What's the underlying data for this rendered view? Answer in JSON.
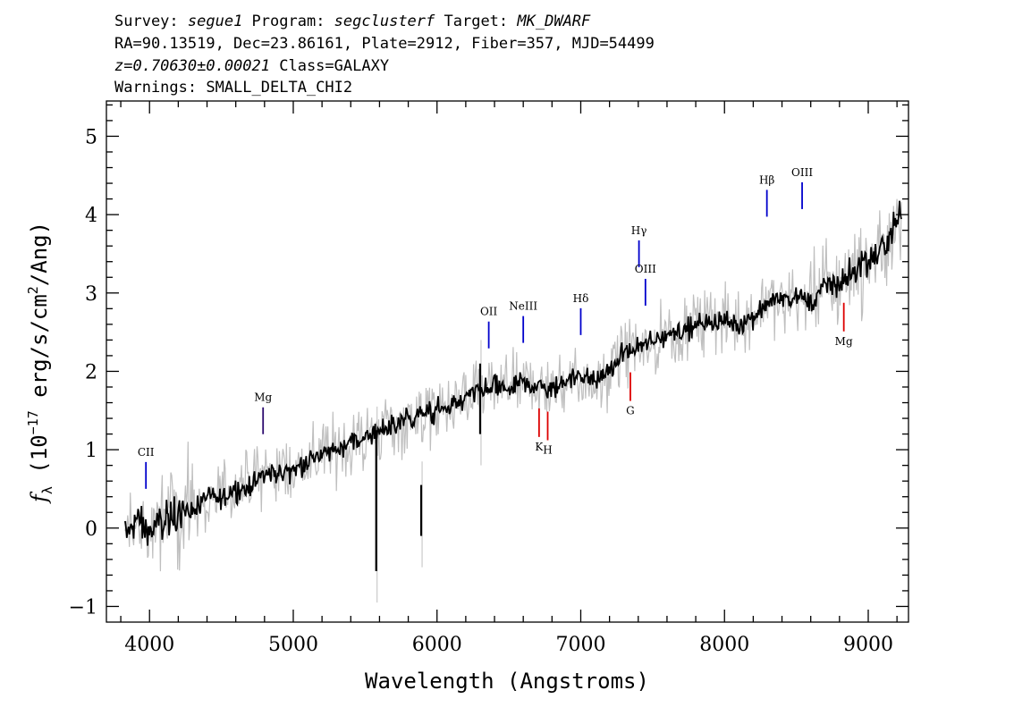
{
  "header": {
    "line1": {
      "survey_label": "Survey: ",
      "survey": "segue1",
      "program_label": " Program: ",
      "program": "segclusterf",
      "target_label": " Target: ",
      "target": "MK_DWARF"
    },
    "line2": "RA=90.13519, Dec=23.86161, Plate=2912, Fiber=357, MJD=54499",
    "line3": {
      "redshift": "z=0.70630±0.00021",
      "class": " Class=GALAXY"
    },
    "line4": "Warnings: SMALL_DELTA_CHI2"
  },
  "chart_data": {
    "type": "line",
    "xlabel": "Wavelength (Angstroms)",
    "ylabel_parts": {
      "f": "f",
      "sub": "λ",
      "pre": " (10",
      "exp1": "−17",
      "mid": " erg/s/cm",
      "exp2": "2",
      "post": "/Ang)"
    },
    "xlim": [
      3700,
      9280
    ],
    "ylim": [
      -1.2,
      5.45
    ],
    "xticks": [
      4000,
      5000,
      6000,
      7000,
      8000,
      9000
    ],
    "xtick_labels": [
      "4000",
      "5000",
      "6000",
      "7000",
      "8000",
      "9000"
    ],
    "yticks": [
      -1,
      0,
      1,
      2,
      3,
      4,
      5
    ],
    "ytick_labels": [
      "−1",
      "0",
      "1",
      "2",
      "3",
      "4",
      "5"
    ],
    "series": [
      {
        "role": "flux",
        "color": "#000000",
        "x": [
          3830,
          3900,
          4000,
          4100,
          4200,
          4300,
          4400,
          4500,
          4600,
          4700,
          4800,
          4900,
          5000,
          5100,
          5200,
          5300,
          5400,
          5500,
          5600,
          5700,
          5800,
          5900,
          6000,
          6100,
          6200,
          6300,
          6400,
          6500,
          6600,
          6700,
          6800,
          6900,
          7000,
          7100,
          7200,
          7300,
          7400,
          7500,
          7600,
          7700,
          7800,
          7900,
          8000,
          8100,
          8200,
          8300,
          8400,
          8500,
          8600,
          8700,
          8800,
          8900,
          9000,
          9100,
          9200,
          9230
        ],
        "y": [
          -0.1,
          0.1,
          -0.05,
          0.1,
          0.2,
          0.25,
          0.35,
          0.4,
          0.5,
          0.55,
          0.7,
          0.7,
          0.75,
          0.85,
          0.95,
          1.0,
          1.1,
          1.15,
          1.25,
          1.3,
          1.4,
          1.45,
          1.5,
          1.55,
          1.65,
          1.75,
          1.8,
          1.78,
          1.85,
          1.82,
          1.75,
          1.9,
          1.95,
          1.85,
          2.0,
          2.25,
          2.3,
          2.35,
          2.5,
          2.5,
          2.6,
          2.65,
          2.65,
          2.6,
          2.7,
          2.9,
          2.9,
          2.95,
          2.9,
          3.1,
          3.1,
          3.3,
          3.4,
          3.55,
          3.9,
          4.0
        ]
      },
      {
        "role": "noise",
        "color": "#bfbfbf",
        "sigma": 0.22
      }
    ],
    "spikes": [
      {
        "x": 5577,
        "y1": -0.55,
        "y2": 1.25
      },
      {
        "x": 5890,
        "y1": -0.1,
        "y2": 0.55
      },
      {
        "x": 6300,
        "y1": 1.2,
        "y2": 2.1
      }
    ],
    "emission_lines": [
      {
        "label": "CII",
        "x": 3975,
        "color": "#0000cc"
      },
      {
        "label": "Mg",
        "x": 4790,
        "color": "#2b0a6e"
      },
      {
        "label": "OII",
        "x": 6360,
        "color": "#0000cc"
      },
      {
        "label": "NeIII",
        "x": 6600,
        "color": "#0000cc"
      },
      {
        "label": "Hδ",
        "x": 7000,
        "color": "#0000cc"
      },
      {
        "label": "Hγ",
        "x": 7405,
        "color": "#0000cc"
      },
      {
        "label": "OIII",
        "x": 7450,
        "color": "#0000cc"
      },
      {
        "label": "Hβ",
        "x": 8295,
        "color": "#0000cc"
      },
      {
        "label": "OIII",
        "x": 8540,
        "color": "#0000cc"
      }
    ],
    "absorption_lines": [
      {
        "label": "K",
        "x": 6710,
        "color": "#dd0000"
      },
      {
        "label": "H",
        "x": 6770,
        "color": "#dd0000"
      },
      {
        "label": "G",
        "x": 7345,
        "color": "#dd0000"
      },
      {
        "label": "Mg",
        "x": 8830,
        "color": "#dd0000"
      }
    ],
    "grid": false,
    "legend": "none"
  }
}
